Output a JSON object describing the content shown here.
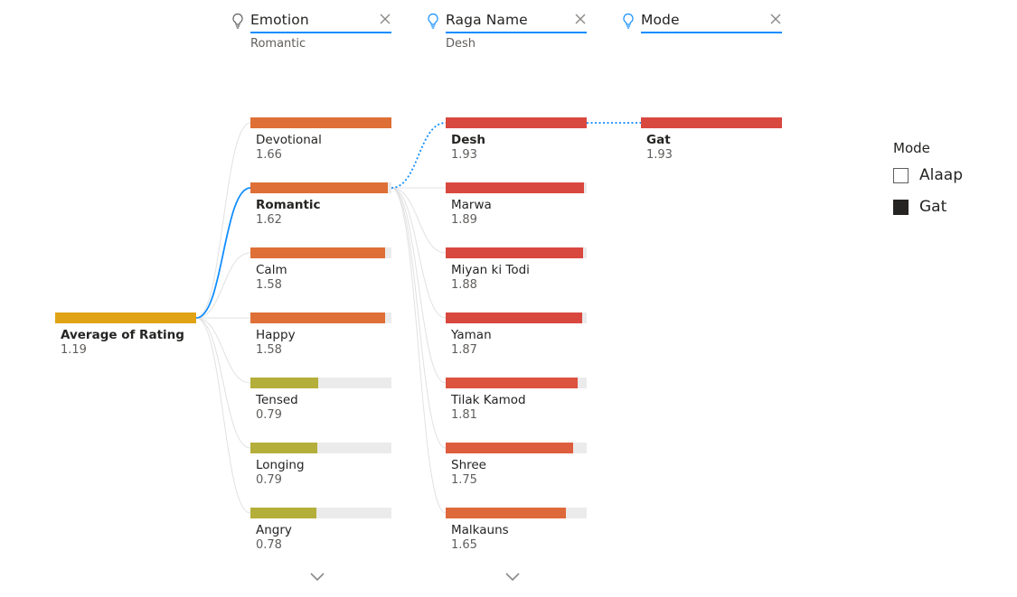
{
  "colors": {
    "accent": "#118DFF",
    "root_bar": "#E0A315",
    "emotion_high": "#DE6F36",
    "emotion_low": "#B4AE3B",
    "raga_high": "#D9483F",
    "raga_mid": "#DE6A3C",
    "mode_bar": "#D9483F",
    "track": "#EBEBEB"
  },
  "headers": [
    {
      "title": "Emotion",
      "subtitle": "Romantic",
      "icon": "lightbulb-icon"
    },
    {
      "title": "Raga Name",
      "subtitle": "Desh",
      "icon": "lightbulb-icon"
    },
    {
      "title": "Mode",
      "subtitle": "",
      "icon": "lightbulb-icon"
    }
  ],
  "root": {
    "label": "Average of Rating",
    "value": "1.19"
  },
  "emotion_nodes": [
    {
      "label": "Devotional",
      "value": "1.66",
      "selected": false
    },
    {
      "label": "Romantic",
      "value": "1.62",
      "selected": true
    },
    {
      "label": "Calm",
      "value": "1.58",
      "selected": false
    },
    {
      "label": "Happy",
      "value": "1.58",
      "selected": false
    },
    {
      "label": "Tensed",
      "value": "0.79",
      "selected": false
    },
    {
      "label": "Longing",
      "value": "0.79",
      "selected": false
    },
    {
      "label": "Angry",
      "value": "0.78",
      "selected": false
    }
  ],
  "raga_nodes": [
    {
      "label": "Desh",
      "value": "1.93",
      "selected": true
    },
    {
      "label": "Marwa",
      "value": "1.89",
      "selected": false
    },
    {
      "label": "Miyan ki Todi",
      "value": "1.88",
      "selected": false
    },
    {
      "label": "Yaman",
      "value": "1.87",
      "selected": false
    },
    {
      "label": "Tilak Kamod",
      "value": "1.81",
      "selected": false
    },
    {
      "label": "Shree",
      "value": "1.75",
      "selected": false
    },
    {
      "label": "Malkauns",
      "value": "1.65",
      "selected": false
    }
  ],
  "mode_nodes": [
    {
      "label": "Gat",
      "value": "1.93",
      "selected": true
    }
  ],
  "legend": {
    "title": "Mode",
    "items": [
      {
        "label": "Alaap",
        "checked": false
      },
      {
        "label": "Gat",
        "checked": true
      }
    ]
  }
}
